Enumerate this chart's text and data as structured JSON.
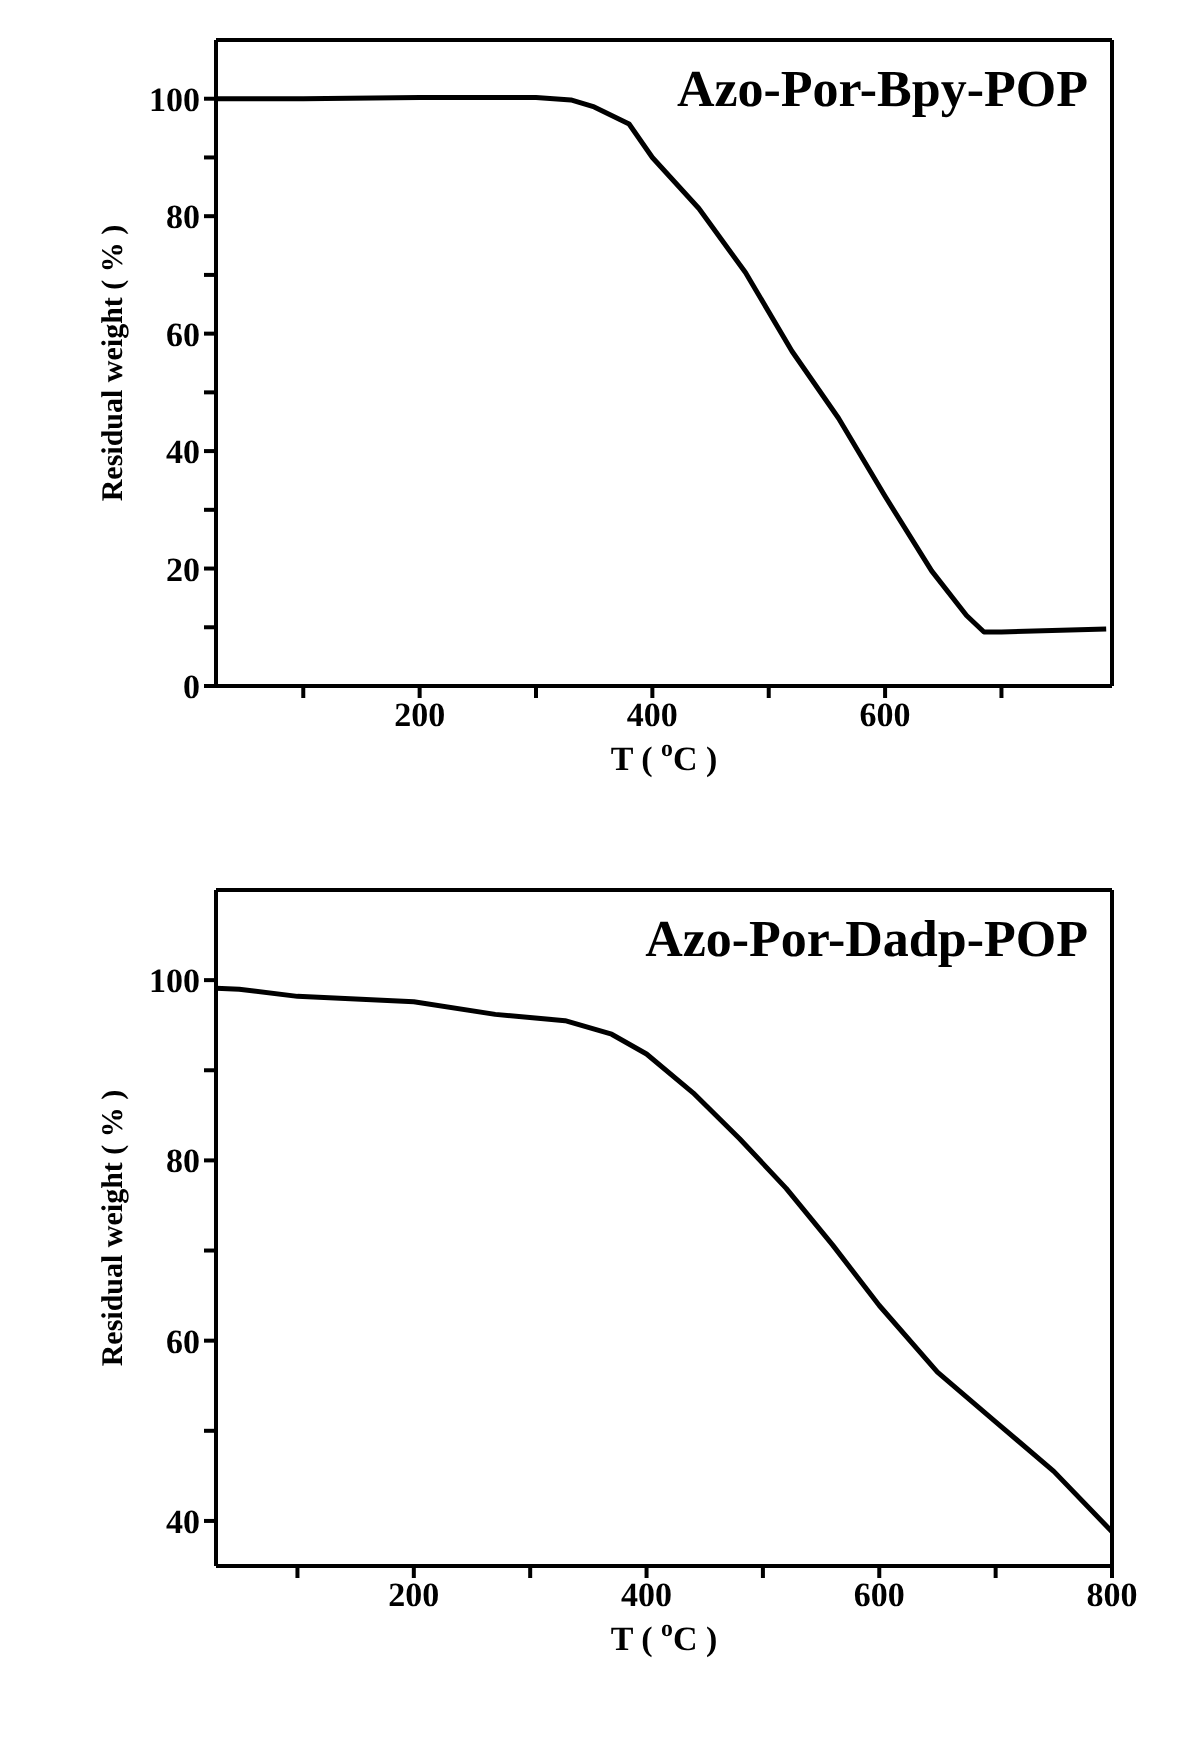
{
  "chart_data": [
    {
      "type": "line",
      "title": "Azo-Por-Bpy-POP",
      "xlabel": "T ( $^{o}$C )",
      "ylabel": "Residual weight ( % )",
      "xlim": [
        25,
        795
      ],
      "ylim": [
        0,
        110
      ],
      "xticks": [
        {
          "value": 100,
          "label": null
        },
        200,
        {
          "value": 300,
          "label": null
        },
        400,
        {
          "value": 500,
          "label": null
        },
        600,
        {
          "value": 700,
          "label": null
        }
      ],
      "yticks": [
        0,
        {
          "value": 10,
          "label": null
        },
        20,
        {
          "value": 30,
          "label": null
        },
        40,
        {
          "value": 50,
          "label": null
        },
        60,
        {
          "value": 70,
          "label": null
        },
        80,
        {
          "value": 90,
          "label": null
        },
        100
      ],
      "legend": false,
      "marker": "none",
      "line_style": "solid",
      "series": [
        {
          "color": "#000000",
          "x": [
            25,
            100,
            200,
            300,
            330,
            350,
            380,
            400,
            440,
            480,
            520,
            560,
            600,
            640,
            670,
            685,
            700,
            790
          ],
          "values": [
            100,
            100,
            100.2,
            100.2,
            99.8,
            98.6,
            95.7,
            90,
            81.3,
            70.4,
            57,
            45.6,
            32.3,
            19.6,
            12,
            9.2,
            9.2,
            9.7
          ]
        }
      ]
    },
    {
      "type": "line",
      "title": "Azo-Por-Dadp-POP",
      "xlabel": "T ( $^{o}$C )",
      "ylabel": "Residual weight ( % )",
      "xlim": [
        30,
        800
      ],
      "ylim": [
        35,
        110
      ],
      "xticks": [
        {
          "value": 100,
          "label": null
        },
        200,
        {
          "value": 300,
          "label": null
        },
        400,
        {
          "value": 500,
          "label": null
        },
        600,
        {
          "value": 700,
          "label": null
        },
        800
      ],
      "yticks": [
        40,
        {
          "value": 50,
          "label": null
        },
        60,
        {
          "value": 70,
          "label": null
        },
        80,
        {
          "value": 90,
          "label": null
        },
        100
      ],
      "legend": false,
      "marker": "none",
      "line_style": "solid",
      "series": [
        {
          "color": "#000000",
          "x": [
            30,
            50,
            100,
            200,
            270,
            330,
            370,
            400,
            440,
            480,
            520,
            560,
            600,
            650,
            700,
            750,
            800
          ],
          "values": [
            99.1,
            99,
            98.2,
            97.6,
            96.2,
            95.5,
            94,
            91.8,
            87.5,
            82.4,
            76.9,
            70.6,
            63.9,
            56.5,
            51,
            45.5,
            38.8
          ]
        }
      ]
    }
  ]
}
